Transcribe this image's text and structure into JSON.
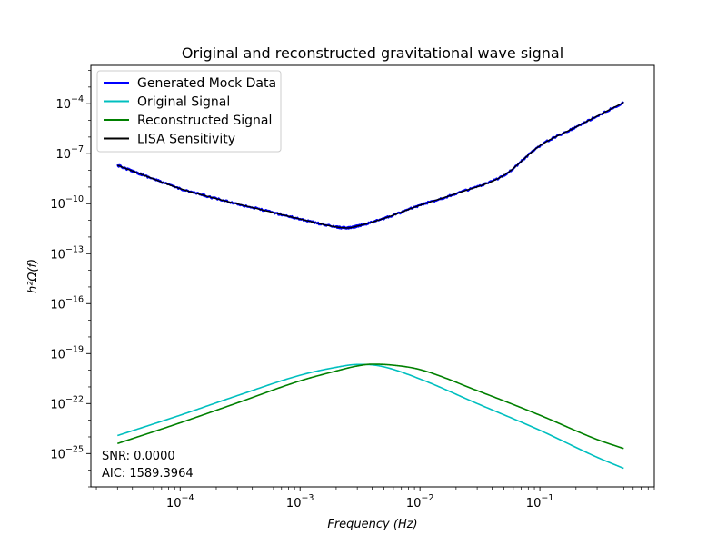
{
  "chart_data": {
    "type": "line",
    "title": "Original and reconstructed gravitational wave signal",
    "xlabel": "Frequency  (Hz)",
    "ylabel": "h²Ω(f)",
    "x_scale": "log",
    "y_scale": "log",
    "xlim": [
      1.8e-05,
      0.9
    ],
    "ylim": [
      1e-27,
      0.02
    ],
    "grid": false,
    "legend_position": "top-left",
    "x_ticks": [
      {
        "value": 0.0001,
        "base": "10",
        "exp": "−4"
      },
      {
        "value": 0.001,
        "base": "10",
        "exp": "−3"
      },
      {
        "value": 0.01,
        "base": "10",
        "exp": "−2"
      },
      {
        "value": 0.1,
        "base": "10",
        "exp": "−1"
      }
    ],
    "y_ticks": [
      {
        "value": 1e-25,
        "base": "10",
        "exp": "−25"
      },
      {
        "value": 1e-22,
        "base": "10",
        "exp": "−22"
      },
      {
        "value": 1e-19,
        "base": "10",
        "exp": "−19"
      },
      {
        "value": 1e-16,
        "base": "10",
        "exp": "−16"
      },
      {
        "value": 1e-13,
        "base": "10",
        "exp": "−13"
      },
      {
        "value": 1e-10,
        "base": "10",
        "exp": "−10"
      },
      {
        "value": 1e-07,
        "base": "10",
        "exp": "−7"
      },
      {
        "value": 0.0001,
        "base": "10",
        "exp": "−4"
      }
    ],
    "series": [
      {
        "name": "Generated Mock Data",
        "color": "#0000ff",
        "x": [
          3e-05,
          5e-05,
          0.0001,
          0.0002,
          0.0005,
          0.001,
          0.002,
          0.0025,
          0.003,
          0.005,
          0.01,
          0.02,
          0.05,
          0.1,
          0.2,
          0.5
        ],
        "y": [
          2e-08,
          5e-09,
          8e-10,
          2e-10,
          4e-11,
          1.2e-11,
          4e-12,
          3.5e-12,
          4.5e-12,
          1.3e-11,
          8e-11,
          4e-10,
          5e-09,
          3e-07,
          4e-06,
          0.00012
        ]
      },
      {
        "name": "Original Signal",
        "color": "#00bfbf",
        "x": [
          3e-05,
          0.0001,
          0.0003,
          0.001,
          0.002,
          0.003,
          0.0035,
          0.005,
          0.01,
          0.03,
          0.1,
          0.3,
          0.5
        ],
        "y": [
          1.2e-24,
          2e-23,
          3e-22,
          5e-21,
          1.5e-20,
          2.2e-20,
          2.2e-20,
          1.6e-20,
          3e-21,
          1e-22,
          2.5e-24,
          6e-26,
          1.3e-26
        ]
      },
      {
        "name": "Reconstructed Signal",
        "color": "#008000",
        "x": [
          3e-05,
          0.0001,
          0.0003,
          0.001,
          0.002,
          0.003,
          0.004,
          0.006,
          0.01,
          0.03,
          0.1,
          0.3,
          0.5
        ],
        "y": [
          4e-25,
          7e-24,
          1.1e-22,
          2.3e-21,
          9e-21,
          1.8e-20,
          2.3e-20,
          2e-20,
          1.1e-20,
          6e-22,
          2e-23,
          7e-25,
          2e-25
        ]
      },
      {
        "name": "LISA Sensitivity",
        "color": "#000000",
        "x": [
          3e-05,
          5e-05,
          0.0001,
          0.0002,
          0.0005,
          0.001,
          0.002,
          0.0025,
          0.003,
          0.005,
          0.01,
          0.02,
          0.05,
          0.1,
          0.2,
          0.5
        ],
        "y": [
          2e-08,
          5e-09,
          8e-10,
          2e-10,
          4e-11,
          1.2e-11,
          4e-12,
          3.5e-12,
          4.5e-12,
          1.3e-11,
          8e-11,
          4e-10,
          5e-09,
          3e-07,
          4e-06,
          0.00012
        ]
      }
    ],
    "annotations": [
      {
        "text": "SNR: 0.0000"
      },
      {
        "text": "AIC: 1589.3964"
      }
    ]
  }
}
